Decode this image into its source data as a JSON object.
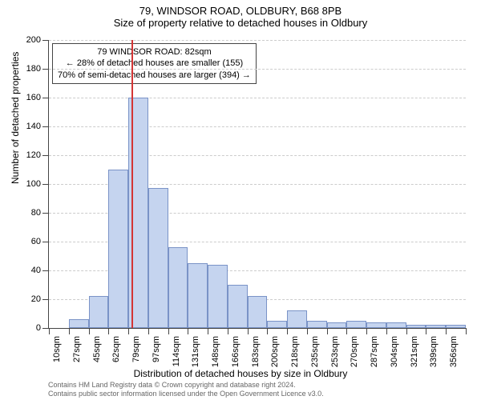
{
  "title1": "79, WINDSOR ROAD, OLDBURY, B68 8PB",
  "title2": "Size of property relative to detached houses in Oldbury",
  "y_axis_title": "Number of detached properties",
  "x_axis_title": "Distribution of detached houses by size in Oldbury",
  "chart": {
    "type": "histogram",
    "ylim": [
      0,
      200
    ],
    "ytick_step": 20,
    "bar_fill": "#c5d4ef",
    "bar_border": "#7a93c7",
    "grid_color": "#cccccc",
    "background": "#ffffff",
    "marker_color": "#d43535",
    "marker_x_index": 4.15,
    "x_categories": [
      "10sqm",
      "27sqm",
      "45sqm",
      "62sqm",
      "79sqm",
      "97sqm",
      "114sqm",
      "131sqm",
      "148sqm",
      "166sqm",
      "183sqm",
      "200sqm",
      "218sqm",
      "235sqm",
      "253sqm",
      "270sqm",
      "287sqm",
      "304sqm",
      "321sqm",
      "339sqm",
      "356sqm"
    ],
    "values": [
      0,
      6,
      22,
      110,
      160,
      97,
      56,
      45,
      44,
      30,
      22,
      5,
      12,
      5,
      4,
      5,
      4,
      4,
      2,
      2,
      2
    ]
  },
  "annotation": {
    "line1": "79 WINDSOR ROAD: 82sqm",
    "line2": "← 28% of detached houses are smaller (155)",
    "line3": "70% of semi-detached houses are larger (394) →"
  },
  "footer": {
    "line1": "Contains HM Land Registry data © Crown copyright and database right 2024.",
    "line2": "Contains public sector information licensed under the Open Government Licence v3.0."
  }
}
